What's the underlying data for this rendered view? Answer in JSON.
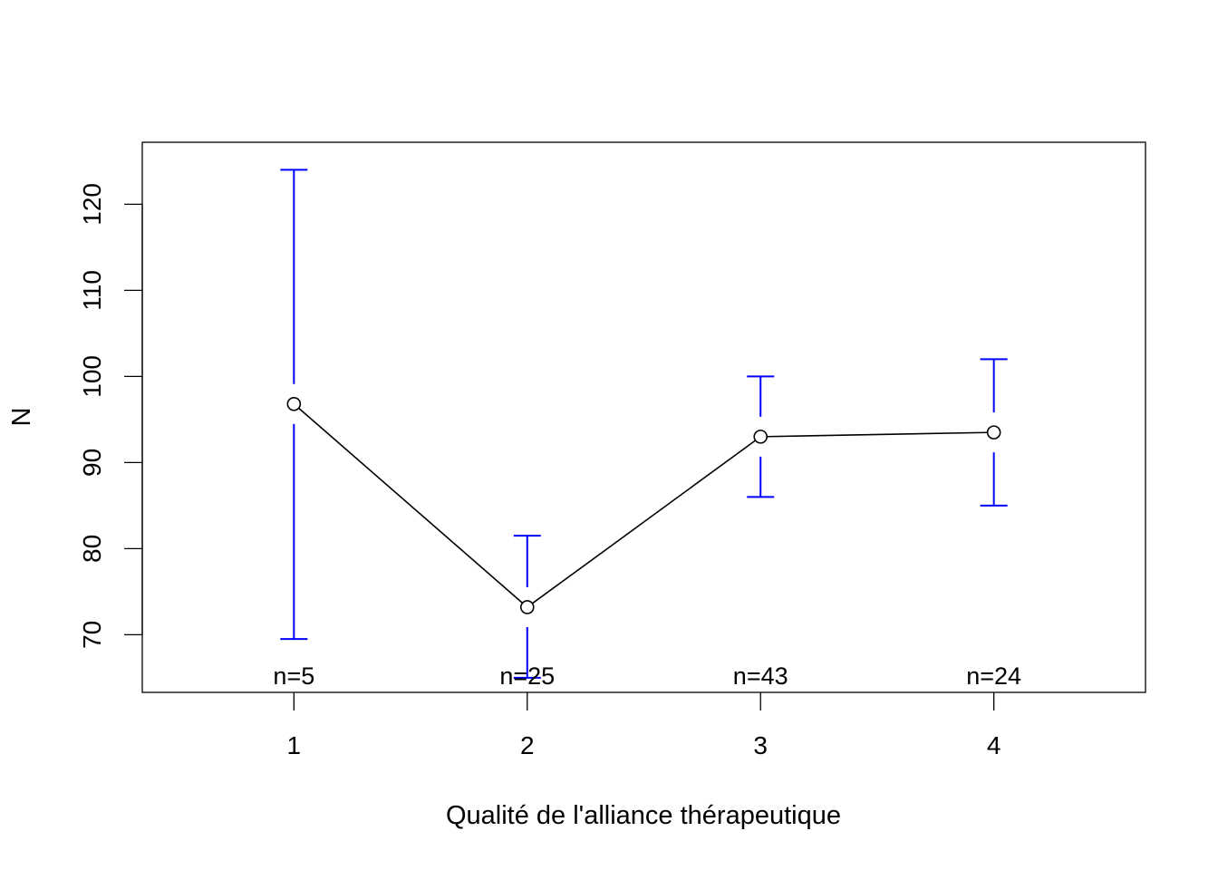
{
  "chart_data": {
    "type": "line",
    "title": "",
    "xlabel": "Qualité de l'alliance thérapeutique",
    "ylabel": "N",
    "xlim": [
      0.35,
      4.65
    ],
    "ylim": [
      63.3,
      127.2
    ],
    "x": [
      1,
      2,
      3,
      4
    ],
    "x_tick_labels": [
      "1",
      "2",
      "3",
      "4"
    ],
    "y_ticks": [
      70,
      80,
      90,
      100,
      110,
      120
    ],
    "y_tick_labels": [
      "70",
      "80",
      "90",
      "100",
      "110",
      "120"
    ],
    "series": [
      {
        "values": [
          96.8,
          73.2,
          93.0,
          93.5
        ],
        "ci_lower": [
          69.5,
          65.0,
          86.0,
          85.0
        ],
        "ci_upper": [
          124.0,
          81.5,
          100.0,
          102.0
        ]
      }
    ],
    "n_labels": [
      "n=5",
      "n=25",
      "n=43",
      "n=24"
    ],
    "line_color": "#000000",
    "errorbar_color": "#0000ff",
    "grid": false,
    "legend": "none"
  }
}
